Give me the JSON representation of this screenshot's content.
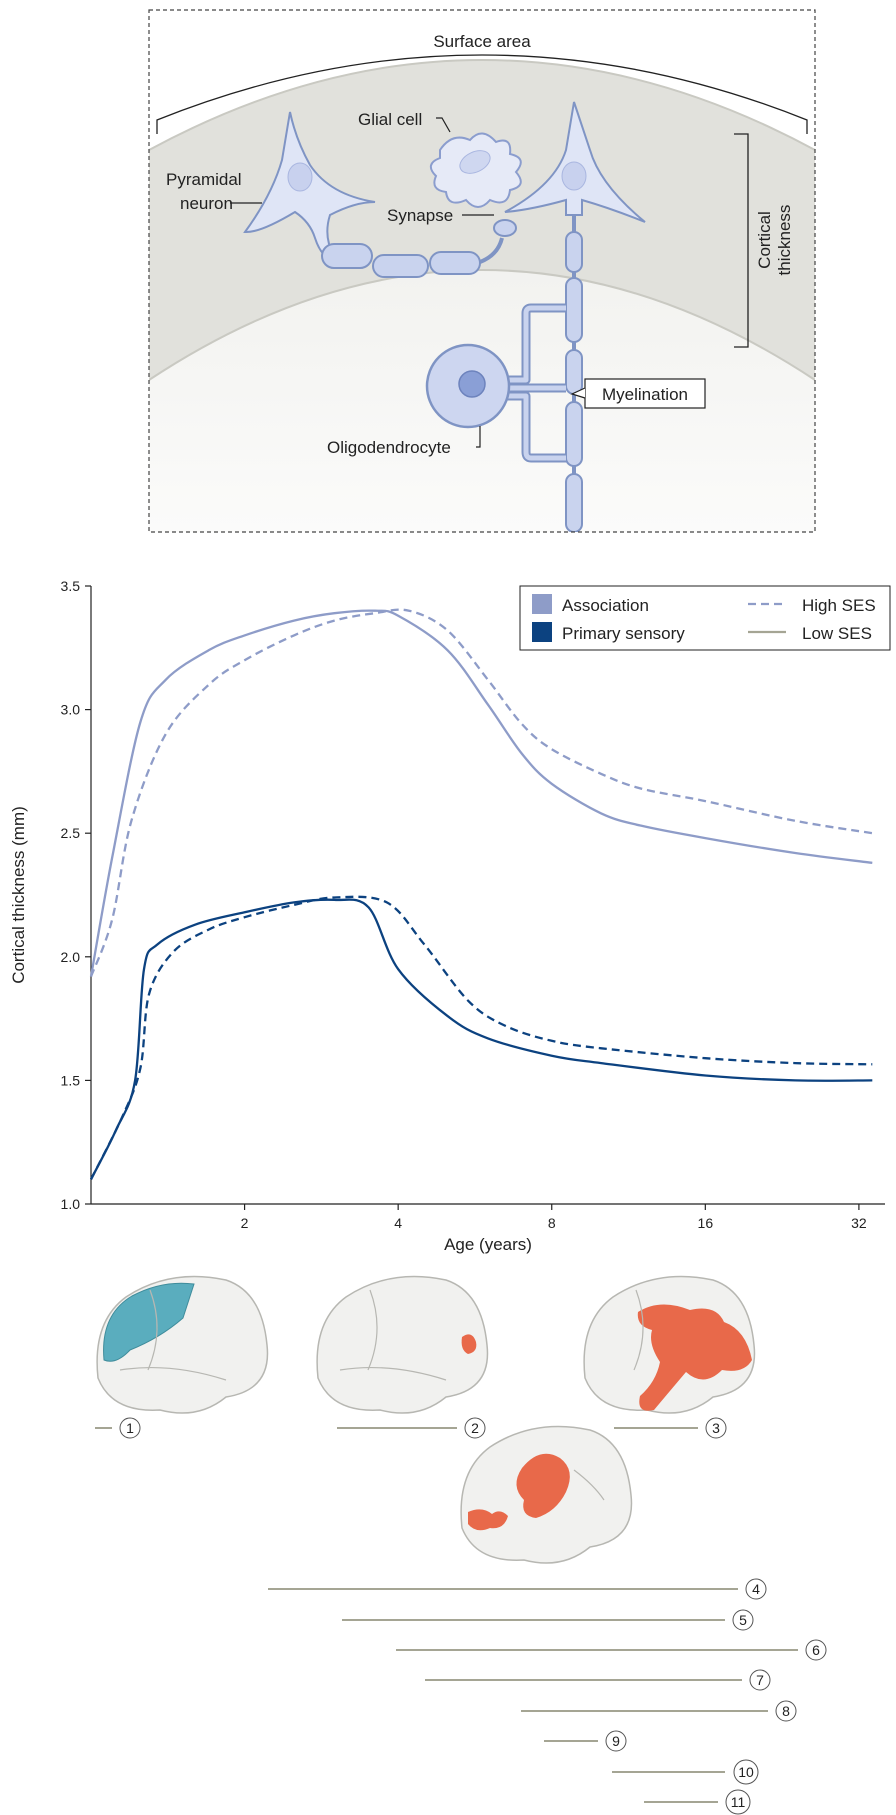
{
  "panel_a": {
    "surface_area_label": "Surface area",
    "glial_cell_label": "Glial cell",
    "pyramidal_line1": "Pyramidal",
    "pyramidal_line2": "neuron",
    "synapse_label": "Synapse",
    "cortical_line1": "Cortical",
    "cortical_line2": "thickness",
    "myelination_label": "Myelination",
    "oligodendrocyte_label": "Oligodendrocyte"
  },
  "chart_data": {
    "type": "line",
    "xlabel": "Age (years)",
    "ylabel": "Cortical thickness (mm)",
    "x_scale": "log2",
    "xlim": [
      1,
      36
    ],
    "ylim": [
      1.0,
      3.5
    ],
    "x_ticks": [
      2,
      4,
      8,
      16,
      32
    ],
    "y_ticks": [
      "1.0",
      "1.5",
      "2.0",
      "2.5",
      "3.0",
      "3.5"
    ],
    "legend_position": "top-right",
    "legend": {
      "region_items": [
        {
          "label": "Association",
          "color": "#8e9cc8"
        },
        {
          "label": "Primary sensory",
          "color": "#0c4280"
        }
      ],
      "style_items": [
        {
          "label": "High SES",
          "style": "dashed"
        },
        {
          "label": "Low SES",
          "style": "solid"
        }
      ]
    },
    "series": [
      {
        "region": "Association",
        "ses": "Low SES",
        "color": "#8e9cc8",
        "dash": false,
        "points": [
          [
            1,
            1.92
          ],
          [
            1.1,
            2.4
          ],
          [
            1.25,
            2.95
          ],
          [
            1.4,
            3.12
          ],
          [
            1.7,
            3.24
          ],
          [
            2,
            3.3
          ],
          [
            2.5,
            3.36
          ],
          [
            3,
            3.39
          ],
          [
            3.6,
            3.4
          ],
          [
            4,
            3.38
          ],
          [
            5,
            3.24
          ],
          [
            6,
            3.02
          ],
          [
            7,
            2.82
          ],
          [
            8,
            2.7
          ],
          [
            10,
            2.58
          ],
          [
            12,
            2.53
          ],
          [
            16,
            2.48
          ],
          [
            24,
            2.42
          ],
          [
            34,
            2.38
          ]
        ]
      },
      {
        "region": "Association",
        "ses": "High SES",
        "color": "#8e9cc8",
        "dash": true,
        "points": [
          [
            1,
            1.92
          ],
          [
            1.1,
            2.15
          ],
          [
            1.2,
            2.55
          ],
          [
            1.4,
            2.9
          ],
          [
            1.7,
            3.1
          ],
          [
            2,
            3.2
          ],
          [
            2.5,
            3.3
          ],
          [
            3,
            3.36
          ],
          [
            3.6,
            3.39
          ],
          [
            4.2,
            3.4
          ],
          [
            5,
            3.32
          ],
          [
            6,
            3.12
          ],
          [
            7,
            2.94
          ],
          [
            8,
            2.84
          ],
          [
            10,
            2.74
          ],
          [
            12,
            2.68
          ],
          [
            16,
            2.63
          ],
          [
            24,
            2.55
          ],
          [
            34,
            2.5
          ]
        ]
      },
      {
        "region": "Primary sensory",
        "ses": "Low SES",
        "color": "#0c4280",
        "dash": false,
        "points": [
          [
            1,
            1.1
          ],
          [
            1.12,
            1.3
          ],
          [
            1.22,
            1.5
          ],
          [
            1.27,
            1.95
          ],
          [
            1.35,
            2.05
          ],
          [
            1.6,
            2.13
          ],
          [
            2,
            2.18
          ],
          [
            2.5,
            2.22
          ],
          [
            3,
            2.23
          ],
          [
            3.5,
            2.2
          ],
          [
            4,
            1.95
          ],
          [
            5,
            1.76
          ],
          [
            6,
            1.67
          ],
          [
            8,
            1.6
          ],
          [
            10,
            1.57
          ],
          [
            16,
            1.52
          ],
          [
            24,
            1.5
          ],
          [
            34,
            1.5
          ]
        ]
      },
      {
        "region": "Primary sensory",
        "ses": "High SES",
        "color": "#0c4280",
        "dash": true,
        "points": [
          [
            1,
            1.1
          ],
          [
            1.15,
            1.35
          ],
          [
            1.25,
            1.55
          ],
          [
            1.3,
            1.85
          ],
          [
            1.45,
            2.02
          ],
          [
            1.7,
            2.11
          ],
          [
            2,
            2.16
          ],
          [
            2.5,
            2.21
          ],
          [
            3,
            2.24
          ],
          [
            3.8,
            2.22
          ],
          [
            4.5,
            2.05
          ],
          [
            5.5,
            1.82
          ],
          [
            6.5,
            1.72
          ],
          [
            8,
            1.66
          ],
          [
            10,
            1.63
          ],
          [
            16,
            1.59
          ],
          [
            24,
            1.57
          ],
          [
            34,
            1.565
          ]
        ]
      }
    ]
  },
  "timeline": {
    "markers": [
      "1",
      "2",
      "3",
      "4",
      "5",
      "6",
      "7",
      "8",
      "9",
      "10",
      "11"
    ],
    "highlight_teal": "#5aadbe",
    "highlight_orange": "#e8694a"
  }
}
